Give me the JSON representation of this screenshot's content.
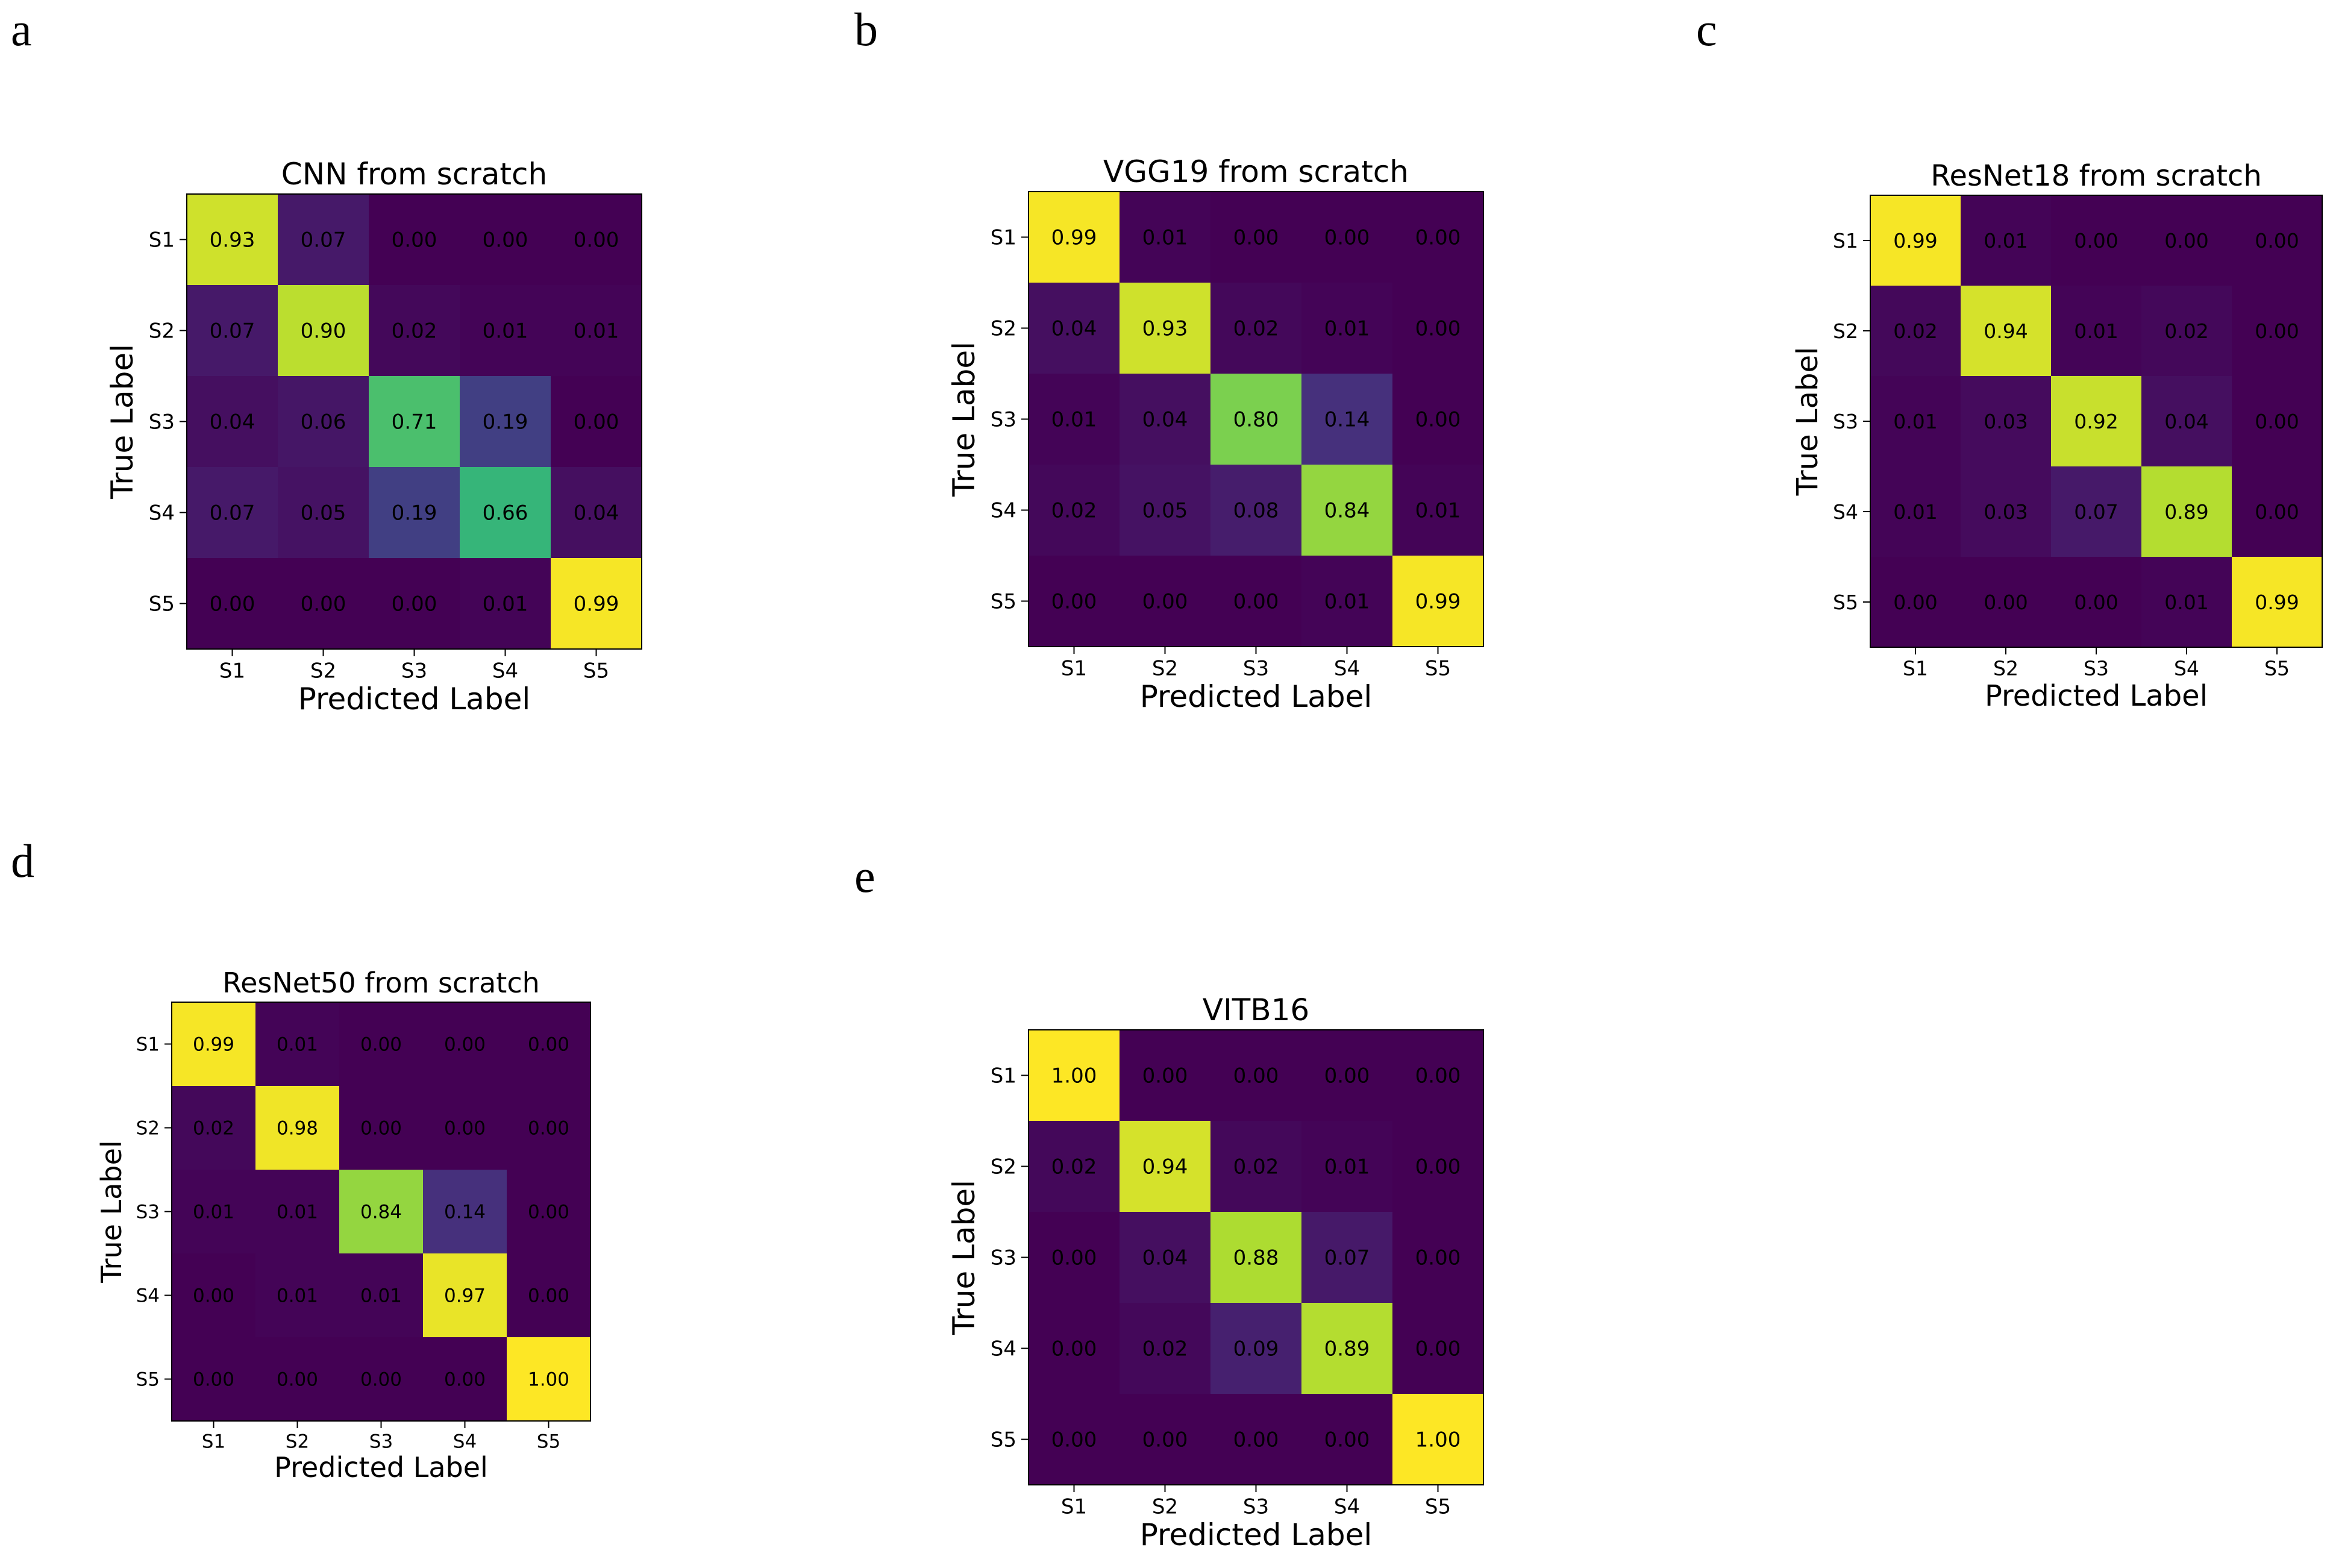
{
  "chart_data": [
    {
      "panel": "a",
      "type": "heatmap",
      "title": "CNN from scratch",
      "xlabel": "Predicted Label",
      "ylabel": "True Label",
      "x_categories": [
        "S1",
        "S2",
        "S3",
        "S4",
        "S5"
      ],
      "y_categories": [
        "S1",
        "S2",
        "S3",
        "S4",
        "S5"
      ],
      "values": [
        [
          0.93,
          0.07,
          0.0,
          0.0,
          0.0
        ],
        [
          0.07,
          0.9,
          0.02,
          0.01,
          0.01
        ],
        [
          0.04,
          0.06,
          0.71,
          0.19,
          0.0
        ],
        [
          0.07,
          0.05,
          0.19,
          0.66,
          0.04
        ],
        [
          0.0,
          0.0,
          0.0,
          0.01,
          0.99
        ]
      ],
      "colormap": "viridis",
      "value_range": [
        0,
        1
      ]
    },
    {
      "panel": "b",
      "type": "heatmap",
      "title": "VGG19 from scratch",
      "xlabel": "Predicted Label",
      "ylabel": "True Label",
      "x_categories": [
        "S1",
        "S2",
        "S3",
        "S4",
        "S5"
      ],
      "y_categories": [
        "S1",
        "S2",
        "S3",
        "S4",
        "S5"
      ],
      "values": [
        [
          0.99,
          0.01,
          0.0,
          0.0,
          0.0
        ],
        [
          0.04,
          0.93,
          0.02,
          0.01,
          0.0
        ],
        [
          0.01,
          0.04,
          0.8,
          0.14,
          0.0
        ],
        [
          0.02,
          0.05,
          0.08,
          0.84,
          0.01
        ],
        [
          0.0,
          0.0,
          0.0,
          0.01,
          0.99
        ]
      ],
      "colormap": "viridis",
      "value_range": [
        0,
        1
      ]
    },
    {
      "panel": "c",
      "type": "heatmap",
      "title": "ResNet18 from scratch",
      "xlabel": "Predicted Label",
      "ylabel": "True Label",
      "x_categories": [
        "S1",
        "S2",
        "S3",
        "S4",
        "S5"
      ],
      "y_categories": [
        "S1",
        "S2",
        "S3",
        "S4",
        "S5"
      ],
      "values": [
        [
          0.99,
          0.01,
          0.0,
          0.0,
          0.0
        ],
        [
          0.02,
          0.94,
          0.01,
          0.02,
          0.0
        ],
        [
          0.01,
          0.03,
          0.92,
          0.04,
          0.0
        ],
        [
          0.01,
          0.03,
          0.07,
          0.89,
          0.0
        ],
        [
          0.0,
          0.0,
          0.0,
          0.01,
          0.99
        ]
      ],
      "colormap": "viridis",
      "value_range": [
        0,
        1
      ]
    },
    {
      "panel": "d",
      "type": "heatmap",
      "title": "ResNet50 from scratch",
      "xlabel": "Predicted Label",
      "ylabel": "True Label",
      "x_categories": [
        "S1",
        "S2",
        "S3",
        "S4",
        "S5"
      ],
      "y_categories": [
        "S1",
        "S2",
        "S3",
        "S4",
        "S5"
      ],
      "values": [
        [
          0.99,
          0.01,
          0.0,
          0.0,
          0.0
        ],
        [
          0.02,
          0.98,
          0.0,
          0.0,
          0.0
        ],
        [
          0.01,
          0.01,
          0.84,
          0.14,
          0.0
        ],
        [
          0.0,
          0.01,
          0.01,
          0.97,
          0.0
        ],
        [
          0.0,
          0.0,
          0.0,
          0.0,
          1.0
        ]
      ],
      "colormap": "viridis",
      "value_range": [
        0,
        1
      ]
    },
    {
      "panel": "e",
      "type": "heatmap",
      "title": "VITB16",
      "xlabel": "Predicted Label",
      "ylabel": "True Label",
      "x_categories": [
        "S1",
        "S2",
        "S3",
        "S4",
        "S5"
      ],
      "y_categories": [
        "S1",
        "S2",
        "S3",
        "S4",
        "S5"
      ],
      "values": [
        [
          1.0,
          0.0,
          0.0,
          0.0,
          0.0
        ],
        [
          0.02,
          0.94,
          0.02,
          0.01,
          0.0
        ],
        [
          0.0,
          0.04,
          0.88,
          0.07,
          0.0
        ],
        [
          0.0,
          0.02,
          0.09,
          0.89,
          0.0
        ],
        [
          0.0,
          0.0,
          0.0,
          0.0,
          1.0
        ]
      ],
      "colormap": "viridis",
      "value_range": [
        0,
        1
      ]
    }
  ]
}
